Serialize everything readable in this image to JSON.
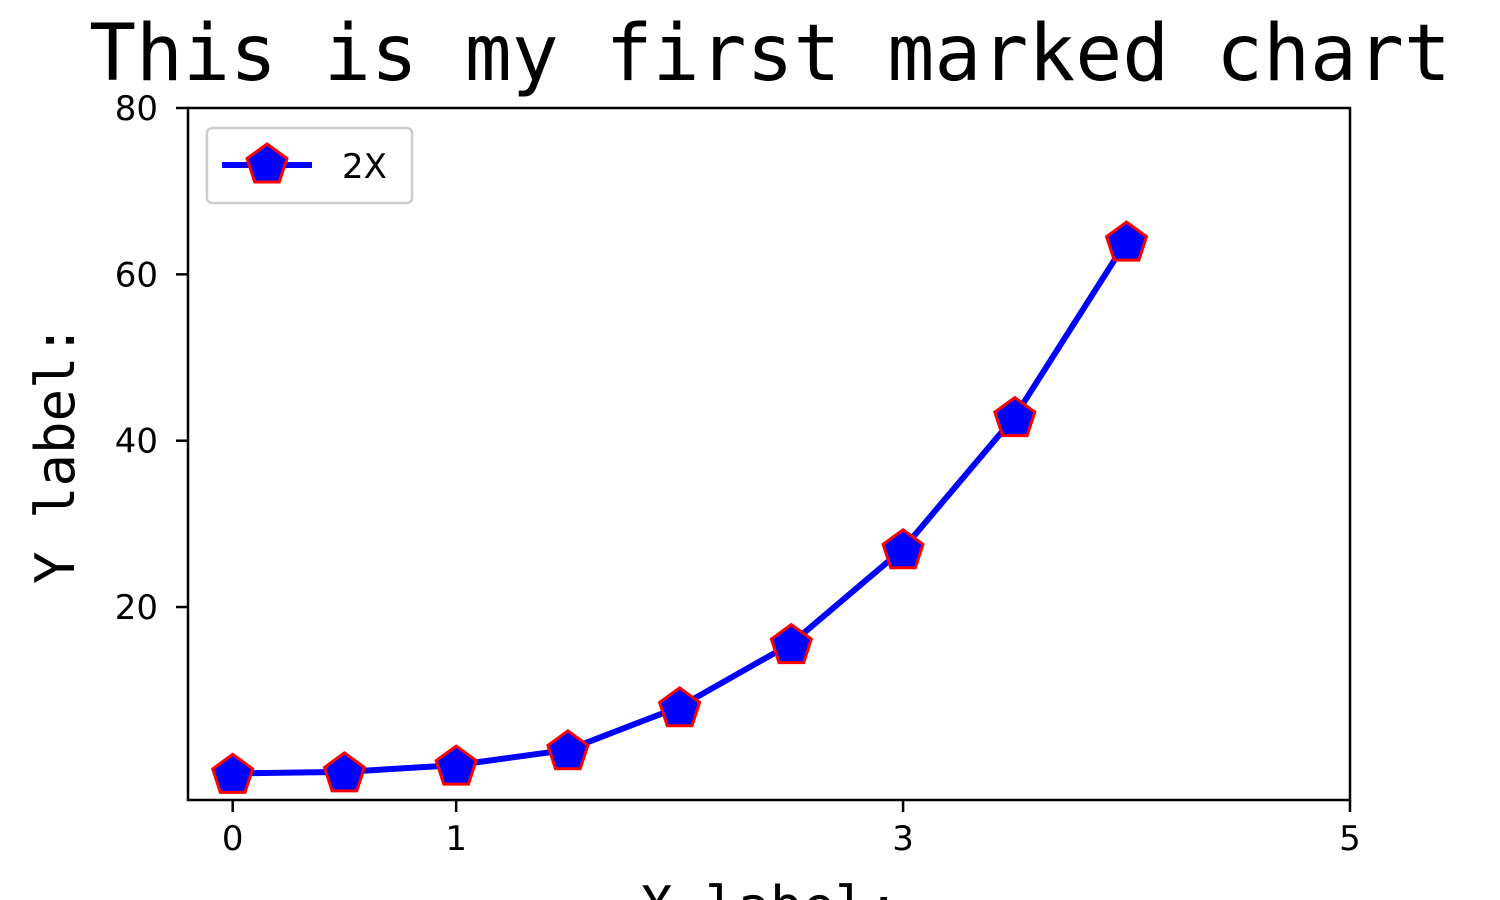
{
  "chart_data": {
    "type": "line",
    "title": "This is my first marked chart",
    "xlabel": "X label:",
    "ylabel": "Y label:",
    "x": [
      0,
      0.5,
      1,
      1.5,
      2,
      2.5,
      3,
      3.5,
      4
    ],
    "series": [
      {
        "name": "2X",
        "values": [
          0,
          0.177,
          1,
          2.83,
          8,
          15.6,
          27,
          42.9,
          64
        ],
        "line_color": "#0000ff",
        "marker": "pentagon",
        "marker_face_color": "#0000ff",
        "marker_edge_color": "#ff0000"
      }
    ],
    "xticks": [
      0,
      1,
      3,
      5
    ],
    "yticks": [
      20,
      40,
      60,
      80
    ],
    "xlim": [
      -0.2,
      5
    ],
    "ylim": [
      -3.2,
      80
    ],
    "grid": false,
    "legend_position": "upper-left"
  }
}
